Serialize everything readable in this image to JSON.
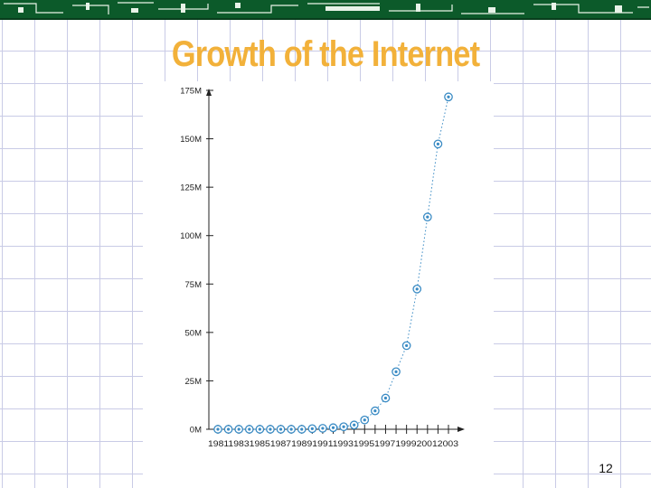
{
  "slide": {
    "title": "Growth of the Internet",
    "page_number": "12"
  },
  "colors": {
    "title": "#f2b13a",
    "top_bar": "#0c5a2a",
    "grid": "#c9cbe6",
    "marker": "#3a8bc4"
  },
  "chart_data": {
    "type": "scatter",
    "title": "",
    "xlabel": "",
    "ylabel": "",
    "grid": false,
    "x": [
      1981,
      1982,
      1983,
      1984,
      1985,
      1986,
      1987,
      1988,
      1989,
      1990,
      1991,
      1992,
      1993,
      1994,
      1995,
      1996,
      1997,
      1998,
      1999,
      2000,
      2001,
      2002,
      2003
    ],
    "y": [
      0,
      0,
      0,
      0,
      0,
      0,
      0,
      0,
      0,
      0.3,
      0.5,
      0.8,
      1.3,
      2.2,
      4.8,
      9.5,
      16.1,
      29.7,
      43.2,
      72.4,
      109.6,
      147.3,
      171.6
    ],
    "x_tick_labels": [
      "1981",
      "1983",
      "1985",
      "1987",
      "1989",
      "1991",
      "1993",
      "1995",
      "1997",
      "1999",
      "2001",
      "2003"
    ],
    "x_tick_text": "198119831985198719891991199319951997199920012003",
    "y_ticks": [
      0,
      25,
      50,
      75,
      100,
      125,
      150,
      175
    ],
    "y_tick_labels": [
      "0M",
      "25M",
      "50M",
      "75M",
      "100M",
      "125M",
      "150M",
      "175M"
    ],
    "ylim": [
      0,
      175
    ],
    "xlim": [
      1981,
      2003
    ],
    "connector": "dotted"
  }
}
